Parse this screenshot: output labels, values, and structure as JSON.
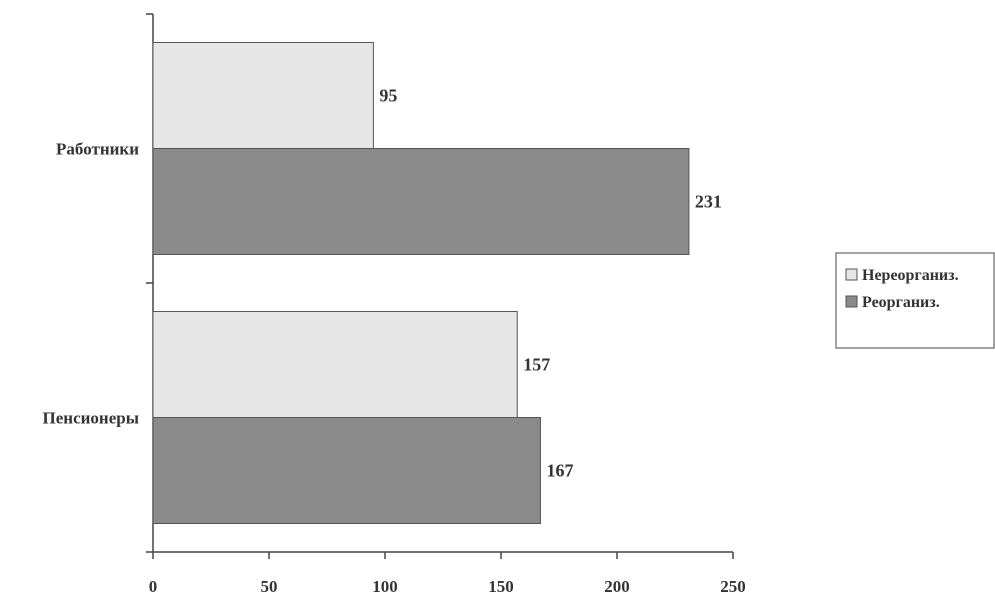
{
  "chart_data": {
    "type": "bar",
    "orientation": "horizontal",
    "categories": [
      "Работники",
      "Пенсионеры"
    ],
    "series": [
      {
        "name": "Нереорганиз.",
        "values": [
          95,
          157
        ],
        "color": "#e6e6e6"
      },
      {
        "name": "Реорганиз.",
        "values": [
          231,
          167
        ],
        "color": "#8a8a8a"
      }
    ],
    "xlim": [
      0,
      250
    ],
    "xticks": [
      "0",
      "50",
      "100",
      "150",
      "200",
      "250"
    ],
    "data_labels": true,
    "legend_position": "right",
    "grid": false
  }
}
